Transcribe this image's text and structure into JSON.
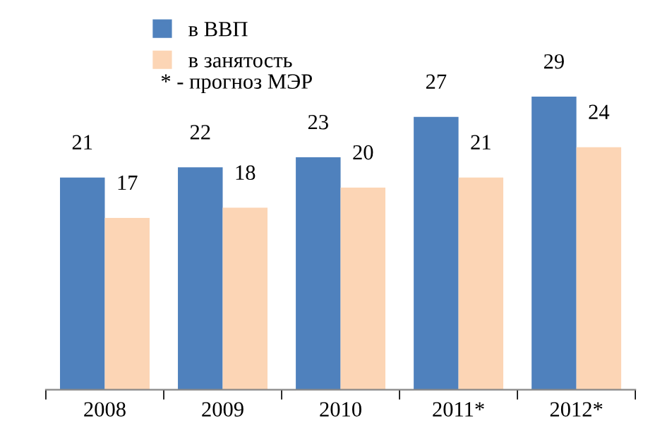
{
  "chart_data": {
    "type": "bar",
    "categories": [
      "2008",
      "2009",
      "2010",
      "2011*",
      "2012*"
    ],
    "series": [
      {
        "name": "в ВВП",
        "color": "#4f81bd",
        "values": [
          21,
          22,
          23,
          27,
          29
        ]
      },
      {
        "name": "в занятость",
        "color": "#fcd5b5",
        "values": [
          17,
          18,
          20,
          21,
          24
        ]
      }
    ],
    "data_labels": true,
    "legend": "top left",
    "grid": false,
    "annotations": [
      "* - прогноз МЭР"
    ]
  }
}
